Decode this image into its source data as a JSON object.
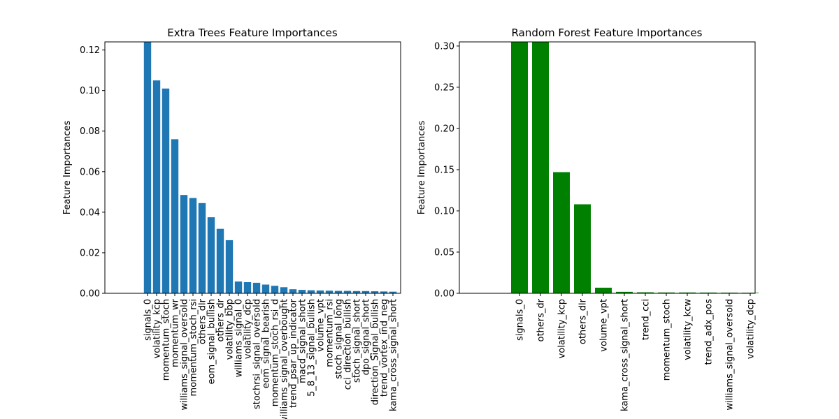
{
  "chart_data": [
    {
      "type": "bar",
      "title": "Extra Trees Feature Importances",
      "xlabel": "",
      "ylabel": "Feature Importances",
      "ylim": [
        0,
        0.124
      ],
      "yticks": [
        "0.00",
        "0.02",
        "0.04",
        "0.06",
        "0.08",
        "0.10",
        "0.12"
      ],
      "grid": false,
      "color": "#1f77b4",
      "categories": [
        "signals_0",
        "volatility_kcp",
        "momentum_stoch",
        "momentum_wr",
        "williams_signal_oversold",
        "momentum_stoch_rsi",
        "others_dlr",
        "eom_signal_bullish",
        "others_dr",
        "volatility_bbp",
        "williams_signal_0",
        "volatility_dcp",
        "stochrsi_signal_oversold",
        "eom_signal_bearish",
        "momentum_stoch_rsi_d",
        "williams_signal_overbought",
        "trend_psar_up_indicator",
        "macd_signal_short",
        "5_8_13_signal_bullish",
        "volume_vpt",
        "momentum_rsi",
        "stoch_signal_long",
        "cci_direction_bullish",
        "stoch_signal_short",
        "dpo_signal_short",
        "direction_Signal_bullish",
        "trend_vortex_ind_neg",
        "kama_cross_signal_short"
      ],
      "values": [
        0.124,
        0.105,
        0.101,
        0.076,
        0.0485,
        0.047,
        0.0445,
        0.0375,
        0.0318,
        0.0262,
        0.0058,
        0.0055,
        0.0052,
        0.0043,
        0.0037,
        0.003,
        0.002,
        0.0017,
        0.0015,
        0.0014,
        0.0013,
        0.0012,
        0.0012,
        0.0011,
        0.0011,
        0.001,
        0.0009,
        0.0008
      ]
    },
    {
      "type": "bar",
      "title": "Random Forest Feature Importances",
      "xlabel": "",
      "ylabel": "Feature Importances",
      "ylim": [
        0,
        0.305
      ],
      "yticks": [
        "0.00",
        "0.05",
        "0.10",
        "0.15",
        "0.20",
        "0.25",
        "0.30"
      ],
      "grid": false,
      "color": "#008000",
      "categories": [
        "signals_0",
        "others_dr",
        "volatility_kcp",
        "others_dlr",
        "volume_vpt",
        "kama_cross_signal_short",
        "trend_cci",
        "momentum_stoch",
        "volatility_kcw",
        "trend_adx_pos",
        "williams_signal_oversold",
        "volatility_dcp"
      ],
      "values": [
        0.305,
        0.305,
        0.147,
        0.108,
        0.0068,
        0.0018,
        0.0012,
        0.001,
        0.001,
        0.0009,
        0.0008,
        0.0007
      ]
    }
  ]
}
